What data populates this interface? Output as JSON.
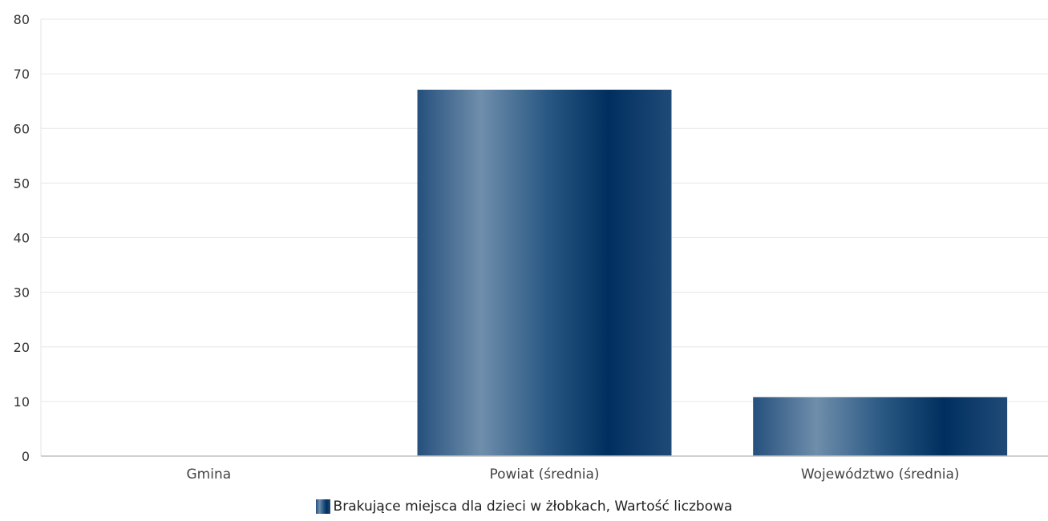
{
  "chart_data": {
    "type": "bar",
    "categories": [
      "Gmina",
      "Powiat (średnia)",
      "Województwo (średnia)"
    ],
    "series": [
      {
        "name": "Brakujące miejsca dla dzieci w żłobkach, Wartość liczbowa",
        "values": [
          0,
          67.1,
          10.8
        ]
      }
    ],
    "ylim": [
      0,
      80
    ],
    "yticks": [
      0,
      10,
      20,
      30,
      40,
      50,
      60,
      70,
      80
    ],
    "grid": true,
    "legend_position": "bottom-center",
    "colors": {
      "bar_dark": "#002f5f",
      "bar_light": "#6f8eab",
      "grid": "#e6e6e6",
      "axis": "#c0c0c0"
    }
  }
}
